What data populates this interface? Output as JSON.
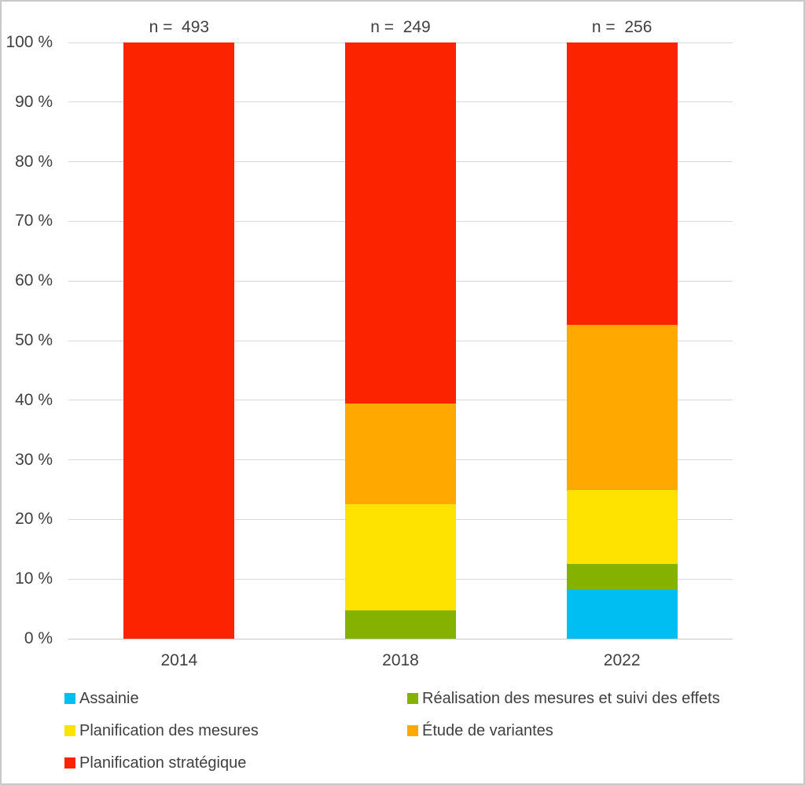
{
  "chart_data": {
    "type": "bar",
    "stacked": true,
    "title": "",
    "xlabel": "",
    "ylabel": "",
    "categories": [
      "2014",
      "2018",
      "2022"
    ],
    "bar_counts": [
      "n =  493",
      "n =  249",
      "n =  256"
    ],
    "series": [
      {
        "name": "Assainie",
        "color": "#00bef2",
        "values": [
          0,
          0,
          8.2
        ]
      },
      {
        "name": "Réalisation des mesures et suivi des effets",
        "color": "#85b200",
        "values": [
          0,
          4.8,
          4.3
        ]
      },
      {
        "name": "Planification des mesures",
        "color": "#ffe300",
        "values": [
          0,
          17.7,
          12.5
        ]
      },
      {
        "name": "Étude de variantes",
        "color": "#ffa800",
        "values": [
          0,
          16.9,
          27.7
        ]
      },
      {
        "name": "Planification stratégique",
        "color": "#fb2300",
        "values": [
          100,
          60.6,
          47.3
        ]
      }
    ],
    "y_axis": {
      "min": 0,
      "max": 100,
      "tick_step": 10,
      "tick_labels": [
        "0 %",
        "10 %",
        "20 %",
        "30 %",
        "40 %",
        "50 %",
        "60 %",
        "70 %",
        "80 %",
        "90 %",
        "100 %"
      ],
      "grid": true
    },
    "legend": {
      "position": "bottom",
      "columns": 2,
      "items": [
        {
          "label": "Assainie",
          "series": 0,
          "col": 0,
          "row": 0
        },
        {
          "label": "Réalisation des mesures et suivi des effets",
          "series": 1,
          "col": 1,
          "row": 0
        },
        {
          "label": "Planification des mesures",
          "series": 2,
          "col": 0,
          "row": 1
        },
        {
          "label": "Étude de variantes",
          "series": 3,
          "col": 1,
          "row": 1
        },
        {
          "label": "Planification stratégique",
          "series": 4,
          "col": 0,
          "row": 2
        }
      ]
    },
    "colors": {
      "text": "#404040",
      "gridline": "#d9d9d9",
      "axis_line": "#c9c9c9",
      "background": "#ffffff",
      "border": "#c9c9c9"
    }
  }
}
